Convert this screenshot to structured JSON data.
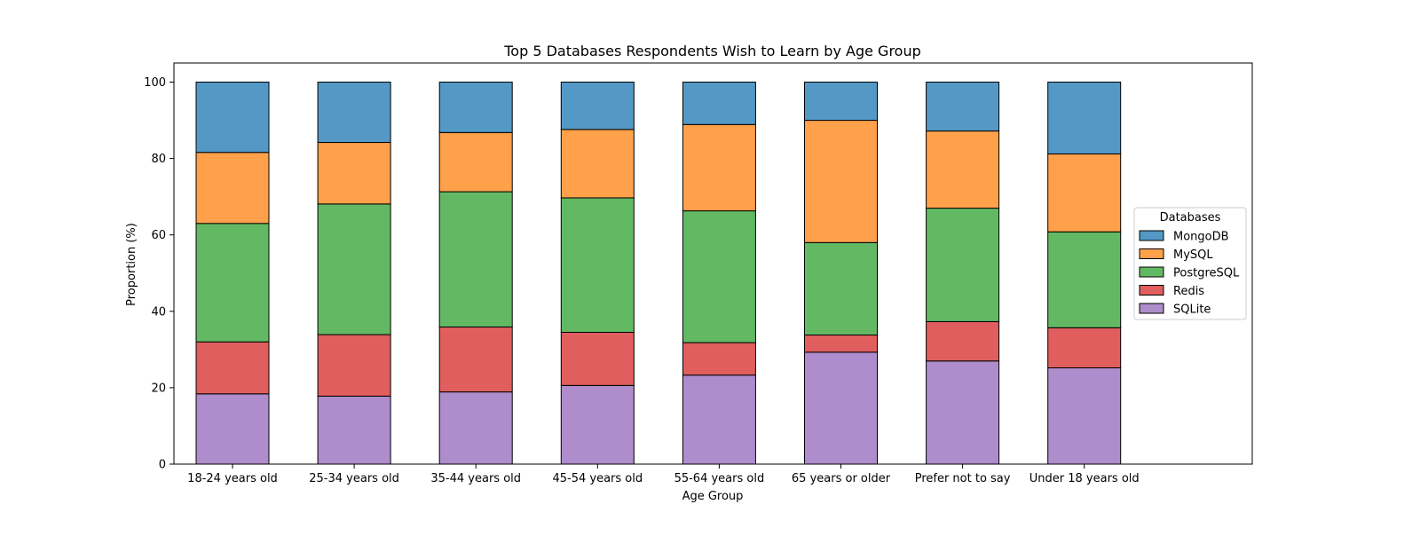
{
  "chart_data": {
    "type": "bar",
    "stacked": true,
    "title": "Top 5 Databases Respondents Wish to Learn by Age Group",
    "xlabel": "Age Group",
    "ylabel": "Proportion (%)",
    "ylim": [
      0,
      105
    ],
    "yticks": [
      0,
      20,
      40,
      60,
      80,
      100
    ],
    "grid": false,
    "legend": {
      "title": "Databases",
      "placement": "right"
    },
    "categories": [
      "18-24 years old",
      "25-34 years old",
      "35-44 years old",
      "45-54 years old",
      "55-64 years old",
      "65 years or older",
      "Prefer not to say",
      "Under 18 years old"
    ],
    "series": [
      {
        "name": "SQLite",
        "color": "#af8ccc",
        "values": [
          18.4,
          17.8,
          18.9,
          20.6,
          23.3,
          29.3,
          27.0,
          25.2
        ]
      },
      {
        "name": "Redis",
        "color": "#e05e5e",
        "values": [
          13.6,
          16.1,
          17.0,
          13.9,
          8.5,
          4.5,
          10.3,
          10.5
        ]
      },
      {
        "name": "PostgreSQL",
        "color": "#63b963",
        "values": [
          31.0,
          34.2,
          35.4,
          35.2,
          34.5,
          24.2,
          29.7,
          25.1
        ]
      },
      {
        "name": "MySQL",
        "color": "#ffa04a",
        "values": [
          18.6,
          16.1,
          15.5,
          17.9,
          22.6,
          32.0,
          20.2,
          20.4
        ]
      },
      {
        "name": "MongoDB",
        "color": "#5498c6",
        "values": [
          18.4,
          15.8,
          13.2,
          12.4,
          11.1,
          10.0,
          12.8,
          18.8
        ]
      }
    ],
    "legend_order": [
      "MongoDB",
      "MySQL",
      "PostgreSQL",
      "Redis",
      "SQLite"
    ]
  }
}
